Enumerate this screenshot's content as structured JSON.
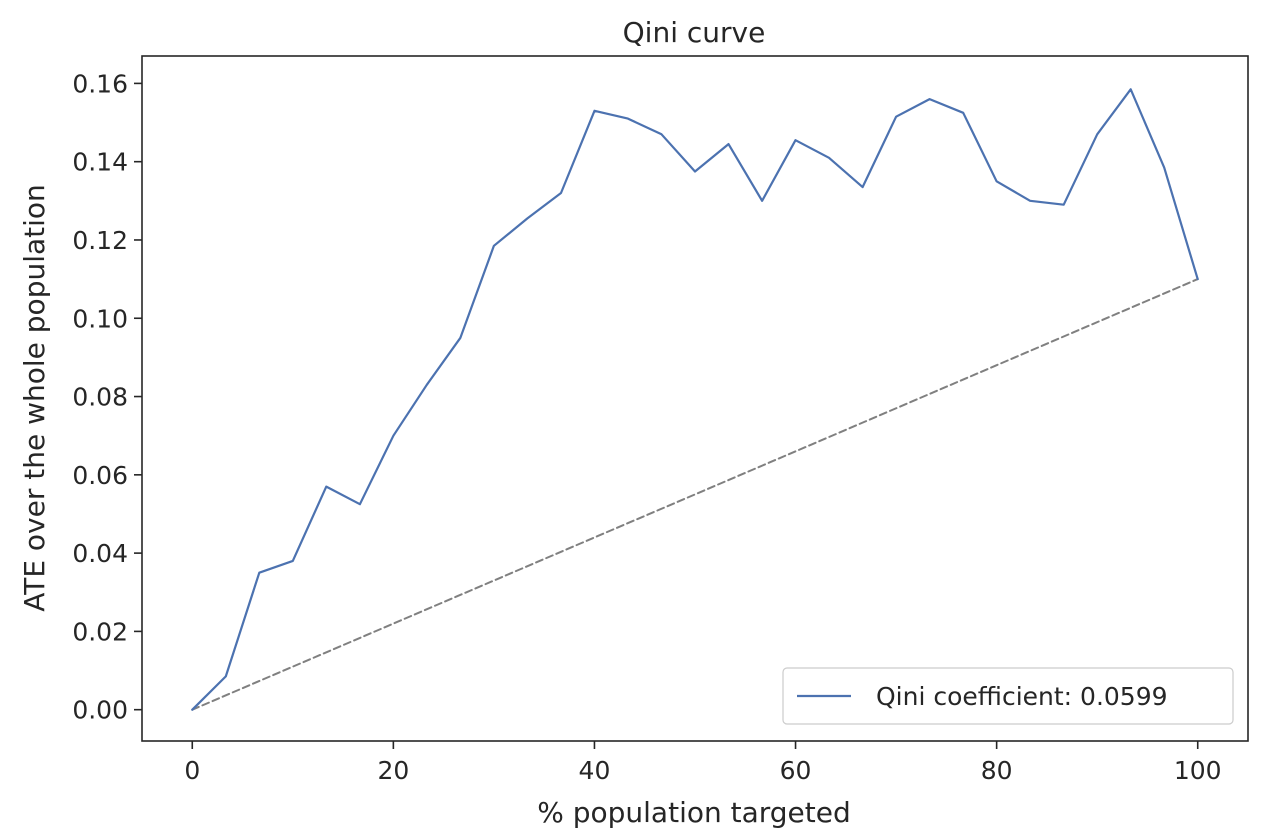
{
  "chart_data": {
    "type": "line",
    "title": "Qini curve",
    "xlabel": "% population targeted",
    "ylabel": "ATE over the whole population",
    "xlim": [
      -5,
      105
    ],
    "ylim": [
      -0.008,
      0.167
    ],
    "x_ticks": [
      0,
      20,
      40,
      60,
      80,
      100
    ],
    "y_ticks": [
      0.0,
      0.02,
      0.04,
      0.06,
      0.08,
      0.1,
      0.12,
      0.14,
      0.16
    ],
    "x_tick_labels": [
      "0",
      "20",
      "40",
      "60",
      "80",
      "100"
    ],
    "y_tick_labels": [
      "0.00",
      "0.02",
      "0.04",
      "0.06",
      "0.08",
      "0.10",
      "0.12",
      "0.14",
      "0.16"
    ],
    "grid": false,
    "legend_position": "lower-right",
    "series": [
      {
        "name": "Qini coefficient: 0.0599",
        "color": "#4c72b0",
        "style": "solid",
        "x": [
          0,
          3.33,
          6.67,
          10,
          13.33,
          16.67,
          20,
          23.33,
          26.67,
          30,
          33.33,
          36.67,
          40,
          43.33,
          46.67,
          50,
          53.33,
          56.67,
          60,
          63.33,
          66.67,
          70,
          73.33,
          76.67,
          80,
          83.33,
          86.67,
          90,
          93.33,
          96.67,
          100
        ],
        "y": [
          0.0,
          0.0085,
          0.035,
          0.038,
          0.057,
          0.0525,
          0.07,
          0.083,
          0.095,
          0.1185,
          0.1255,
          0.132,
          0.153,
          0.151,
          0.147,
          0.1375,
          0.1445,
          0.13,
          0.1455,
          0.141,
          0.1335,
          0.1515,
          0.156,
          0.1525,
          0.135,
          0.13,
          0.129,
          0.147,
          0.1585,
          0.1385,
          0.11
        ]
      },
      {
        "color": "#808080",
        "style": "dashed",
        "x": [
          0,
          100
        ],
        "y": [
          0.0,
          0.11
        ]
      }
    ]
  }
}
